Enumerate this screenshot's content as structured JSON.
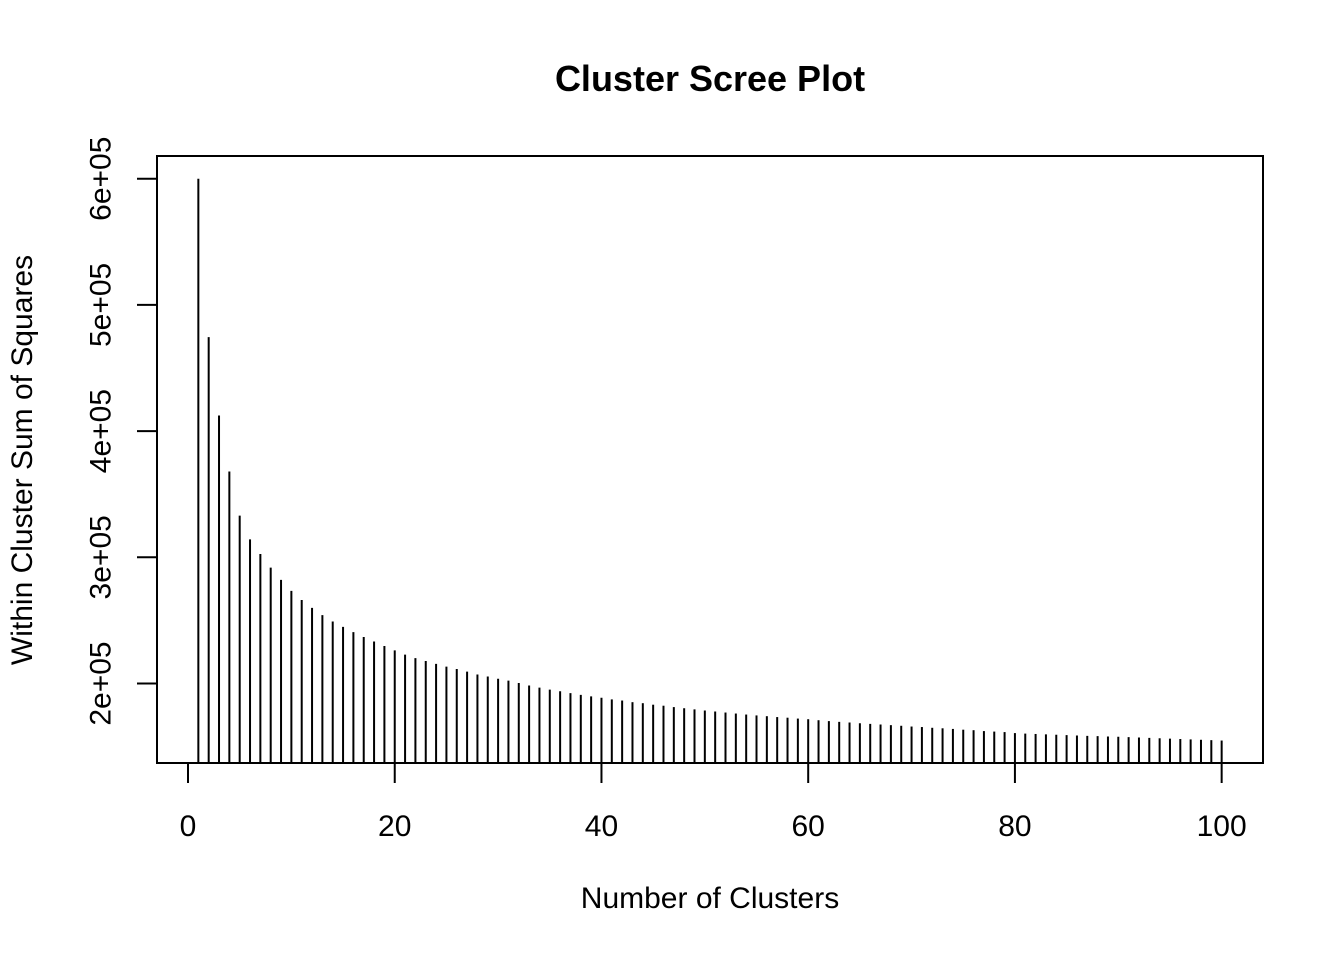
{
  "page": {
    "background_color": "#ffffff",
    "foreground_color": "#000000"
  },
  "chart_data": {
    "type": "bar",
    "style": "vertical-spike-lines (R plot type='h')",
    "title": "Cluster Scree Plot",
    "xlabel": "Number of Clusters",
    "ylabel": "Within Cluster Sum of Squares",
    "grid": false,
    "legend_position": "none",
    "xlim": [
      -3,
      104
    ],
    "ylim": [
      137000,
      618000
    ],
    "x_ticks": {
      "values": [
        0,
        20,
        40,
        60,
        80,
        100
      ],
      "labels": [
        "0",
        "20",
        "40",
        "60",
        "80",
        "100"
      ]
    },
    "y_ticks": {
      "values": [
        200000,
        300000,
        400000,
        500000,
        600000
      ],
      "labels": [
        "2e+05",
        "3e+05",
        "4e+05",
        "5e+05",
        "6e+05"
      ]
    },
    "x": [
      1,
      2,
      3,
      4,
      5,
      6,
      7,
      8,
      9,
      10,
      11,
      12,
      13,
      14,
      15,
      16,
      17,
      18,
      19,
      20,
      21,
      22,
      23,
      24,
      25,
      26,
      27,
      28,
      29,
      30,
      31,
      32,
      33,
      34,
      35,
      36,
      37,
      38,
      39,
      40,
      41,
      42,
      43,
      44,
      45,
      46,
      47,
      48,
      49,
      50,
      51,
      52,
      53,
      54,
      55,
      56,
      57,
      58,
      59,
      60,
      61,
      62,
      63,
      64,
      65,
      66,
      67,
      68,
      69,
      70,
      71,
      72,
      73,
      74,
      75,
      76,
      77,
      78,
      79,
      80,
      81,
      82,
      83,
      84,
      85,
      86,
      87,
      88,
      89,
      90,
      91,
      92,
      93,
      94,
      95,
      96,
      97,
      98,
      99,
      100
    ],
    "values": [
      600000,
      474500,
      412400,
      368000,
      333000,
      314200,
      302600,
      291800,
      282100,
      273400,
      266200,
      259900,
      254200,
      249100,
      244900,
      240700,
      236800,
      233300,
      229700,
      226200,
      222900,
      220100,
      217800,
      215500,
      213400,
      211500,
      209400,
      207100,
      205500,
      203800,
      202300,
      200400,
      198400,
      196700,
      195100,
      193900,
      192400,
      191000,
      189800,
      188700,
      187400,
      186500,
      185200,
      184400,
      183200,
      182400,
      181300,
      180400,
      179500,
      178600,
      177800,
      177000,
      176200,
      175400,
      174700,
      174100,
      173400,
      172900,
      172200,
      171700,
      170900,
      170200,
      169600,
      169100,
      168500,
      168000,
      167500,
      167000,
      166500,
      165900,
      165500,
      164900,
      164500,
      164000,
      163400,
      163000,
      162300,
      161900,
      161500,
      160700,
      160300,
      160000,
      159700,
      159400,
      159100,
      158800,
      158500,
      158300,
      158000,
      157800,
      157500,
      157200,
      156900,
      156600,
      156300,
      156000,
      155700,
      155400,
      155100,
      154800
    ]
  }
}
